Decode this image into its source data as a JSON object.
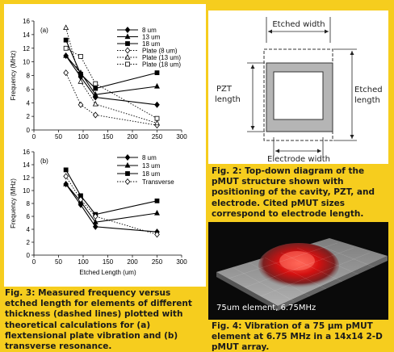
{
  "chart_data": [
    {
      "type": "line",
      "panel_label": "(a)",
      "xlim": [
        0,
        300
      ],
      "ylim": [
        0,
        16
      ],
      "xticks": [
        0,
        50,
        100,
        150,
        200,
        250,
        300
      ],
      "yticks": [
        0,
        2,
        4,
        6,
        8,
        10,
        12,
        14,
        16
      ],
      "xlabel": "",
      "ylabel": "Frequency (MHz)",
      "legend_position": "top-right",
      "series": [
        {
          "name": "8 um",
          "style": "solid",
          "marker": "diamond-filled",
          "x": [
            65,
            95,
            125,
            250
          ],
          "y": [
            10.9,
            7.8,
            4.8,
            3.7
          ]
        },
        {
          "name": "13 um",
          "style": "solid",
          "marker": "triangle-filled",
          "x": [
            65,
            95,
            125,
            250
          ],
          "y": [
            10.9,
            8.4,
            5.2,
            6.4
          ]
        },
        {
          "name": "18 um",
          "style": "solid",
          "marker": "square-filled",
          "x": [
            65,
            95,
            125,
            250
          ],
          "y": [
            13.2,
            8.2,
            6.1,
            8.4
          ]
        },
        {
          "name": "Plate (8 um)",
          "style": "dotted",
          "marker": "diamond-open",
          "x": [
            65,
            95,
            125,
            250
          ],
          "y": [
            8.4,
            3.7,
            2.2,
            0.7
          ]
        },
        {
          "name": "Plate (13 um)",
          "style": "dotted",
          "marker": "triangle-open",
          "x": [
            65,
            95,
            125,
            250
          ],
          "y": [
            15.0,
            7.1,
            3.8,
            1.0
          ]
        },
        {
          "name": "Plate (18 um)",
          "style": "dotted",
          "marker": "square-open",
          "x": [
            65,
            95,
            125,
            250
          ],
          "y": [
            12.0,
            10.8,
            6.8,
            1.7
          ]
        }
      ]
    },
    {
      "type": "line",
      "panel_label": "(b)",
      "xlim": [
        0,
        300
      ],
      "ylim": [
        0,
        16
      ],
      "xticks": [
        0,
        50,
        100,
        150,
        200,
        250,
        300
      ],
      "yticks": [
        0,
        2,
        4,
        6,
        8,
        10,
        12,
        14,
        16
      ],
      "xlabel": "Etched Length (um)",
      "ylabel": "Frequency (MHz)",
      "legend_position": "top-right",
      "series": [
        {
          "name": "8 um",
          "style": "solid",
          "marker": "diamond-filled",
          "x": [
            65,
            95,
            125,
            250
          ],
          "y": [
            11.0,
            7.8,
            4.4,
            3.6
          ]
        },
        {
          "name": "13 um",
          "style": "solid",
          "marker": "triangle-filled",
          "x": [
            65,
            95,
            125,
            250
          ],
          "y": [
            11.0,
            8.3,
            5.1,
            6.5
          ]
        },
        {
          "name": "18 um",
          "style": "solid",
          "marker": "square-filled",
          "x": [
            65,
            95,
            125,
            250
          ],
          "y": [
            13.2,
            9.2,
            6.3,
            8.4
          ]
        },
        {
          "name": "Transverse",
          "style": "dotted",
          "marker": "diamond-open",
          "x": [
            65,
            95,
            125,
            250
          ],
          "y": [
            12.2,
            8.6,
            6.0,
            3.2
          ]
        }
      ]
    }
  ],
  "figures": {
    "fig3_caption": "Fig. 3: Measured frequency versus etched length for elements of different thickness (dashed lines) plotted with theoretical calculations for (a) flextensional plate vibration and (b) transverse resonance.",
    "fig2_caption": "Fig. 2: Top-down diagram of the pMUT structure shown with positioning of the cavity, PZT, and electrode. Cited pMUT sizes correspond to electrode length.",
    "fig4_caption": "Fig. 4: Vibration of a 75 µm pMUT element at 6.75 MHz in a 14x14 2-D pMUT array.",
    "diagram": {
      "etched_width": "Etched width",
      "etched_length": [
        "Etched",
        "length"
      ],
      "pzt_length": [
        "PZT",
        "length"
      ],
      "electrode_width": "Electrode width"
    },
    "photo_label": "75um element, 6.75MHz"
  },
  "colors": {
    "background": "#f6cd1e",
    "panel": "#ffffff",
    "pzt_fill": "#b5b5b5",
    "surface_peak": "#e01010",
    "surface_base": "#9a9a9a"
  }
}
